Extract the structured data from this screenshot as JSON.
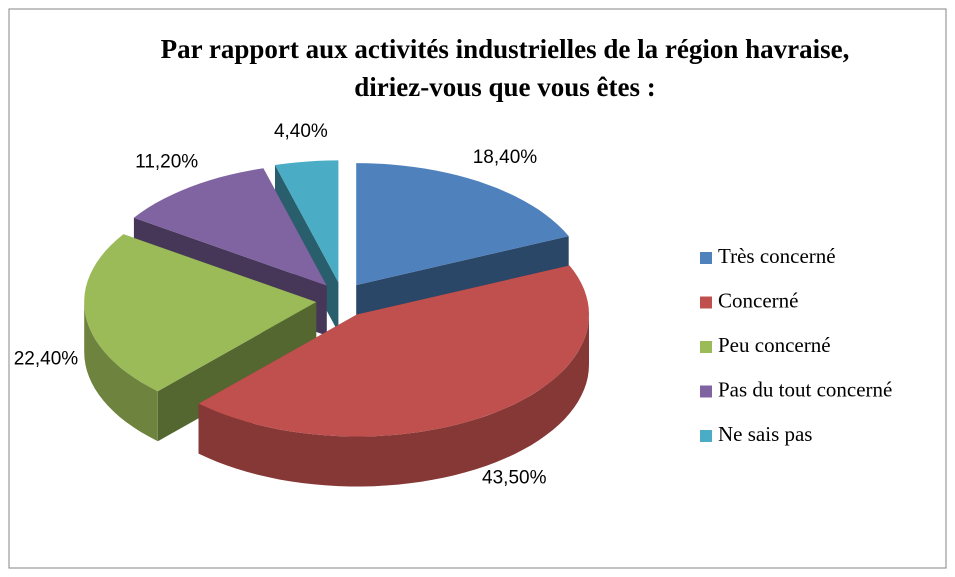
{
  "chart_data": {
    "type": "pie3d",
    "title": "Par rapport aux activités industrielles de la région havraise, diriez-vous que vous êtes :",
    "categories": [
      "Très concerné",
      "Concerné",
      "Peu concerné",
      "Pas du tout concerné",
      "Ne sais pas"
    ],
    "values": [
      18.4,
      43.5,
      22.4,
      11.2,
      4.4
    ],
    "value_labels": [
      "18,40%",
      "43,50%",
      "22,40%",
      "11,20%",
      "4,40%"
    ],
    "colors": [
      "#4f81bd",
      "#c0504d",
      "#9bbb59",
      "#8064a2",
      "#4bacc6"
    ],
    "legend": "right"
  }
}
